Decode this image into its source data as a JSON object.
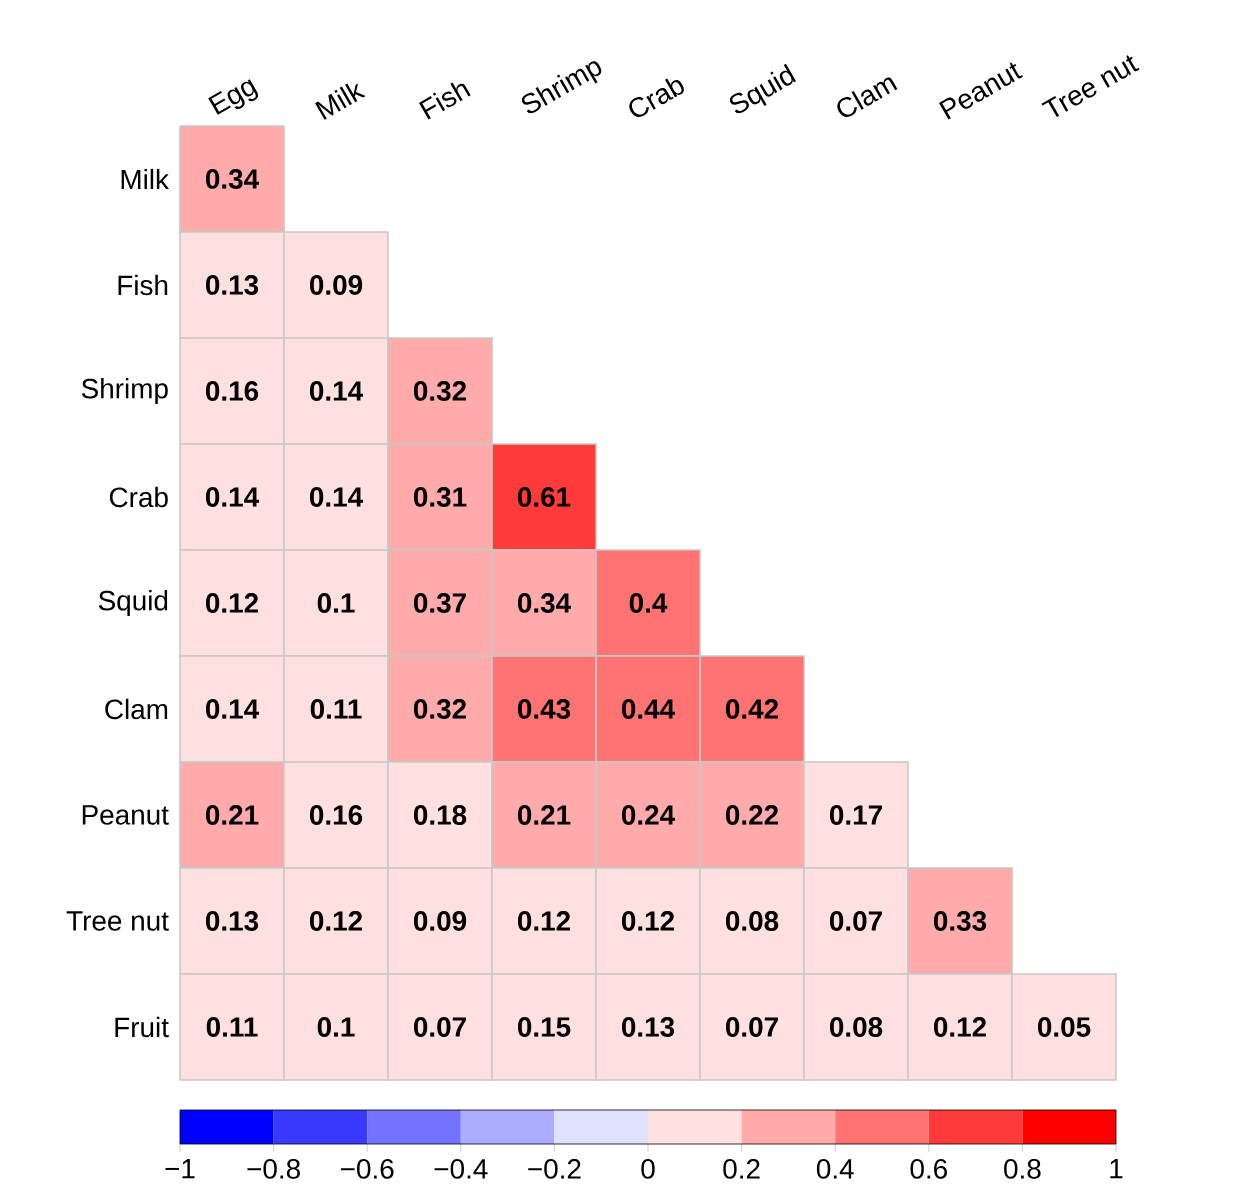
{
  "chart_data": {
    "type": "heatmap",
    "categories": [
      "Egg",
      "Milk",
      "Fish",
      "Shrimp",
      "Crab",
      "Squid",
      "Clam",
      "Peanut",
      "Tree nut"
    ],
    "y_categories": [
      "Milk",
      "Fish",
      "Shrimp",
      "Crab",
      "Squid",
      "Clam",
      "Peanut",
      "Tree nut",
      "Fruit"
    ],
    "cells": [
      [
        0.34,
        null,
        null,
        null,
        null,
        null,
        null,
        null,
        null
      ],
      [
        0.13,
        0.09,
        null,
        null,
        null,
        null,
        null,
        null,
        null
      ],
      [
        0.16,
        0.14,
        0.32,
        null,
        null,
        null,
        null,
        null,
        null
      ],
      [
        0.14,
        0.14,
        0.31,
        0.61,
        null,
        null,
        null,
        null,
        null
      ],
      [
        0.12,
        0.1,
        0.37,
        0.34,
        0.4,
        null,
        null,
        null,
        null
      ],
      [
        0.14,
        0.11,
        0.32,
        0.43,
        0.44,
        0.42,
        null,
        null,
        null
      ],
      [
        0.21,
        0.16,
        0.18,
        0.21,
        0.24,
        0.22,
        0.17,
        null,
        null
      ],
      [
        0.13,
        0.12,
        0.09,
        0.12,
        0.12,
        0.08,
        0.07,
        0.33,
        null
      ],
      [
        0.11,
        0.1,
        0.07,
        0.15,
        0.13,
        0.07,
        0.08,
        0.12,
        0.05
      ]
    ],
    "cell_labels": [
      [
        "0.34",
        null,
        null,
        null,
        null,
        null,
        null,
        null,
        null
      ],
      [
        "0.13",
        "0.09",
        null,
        null,
        null,
        null,
        null,
        null,
        null
      ],
      [
        "0.16",
        "0.14",
        "0.32",
        null,
        null,
        null,
        null,
        null,
        null
      ],
      [
        "0.14",
        "0.14",
        "0.31",
        "0.61",
        null,
        null,
        null,
        null,
        null
      ],
      [
        "0.12",
        "0.1",
        "0.37",
        "0.34",
        "0.4",
        null,
        null,
        null,
        null
      ],
      [
        "0.14",
        "0.11",
        "0.32",
        "0.43",
        "0.44",
        "0.42",
        null,
        null,
        null
      ],
      [
        "0.21",
        "0.16",
        "0.18",
        "0.21",
        "0.24",
        "0.22",
        "0.17",
        null,
        null
      ],
      [
        "0.13",
        "0.12",
        "0.09",
        "0.12",
        "0.12",
        "0.08",
        "0.07",
        "0.33",
        null
      ],
      [
        "0.11",
        "0.1",
        "0.07",
        "0.15",
        "0.13",
        "0.07",
        "0.08",
        "0.12",
        "0.05"
      ]
    ],
    "clim": [
      -1,
      1
    ],
    "cticks": [
      {
        "value": -1,
        "label": "−1"
      },
      {
        "value": -0.8,
        "label": "−0.8"
      },
      {
        "value": -0.6,
        "label": "−0.6"
      },
      {
        "value": -0.4,
        "label": "−0.4"
      },
      {
        "value": -0.2,
        "label": "−0.2"
      },
      {
        "value": 0,
        "label": "0"
      },
      {
        "value": 0.2,
        "label": "0.2"
      },
      {
        "value": 0.4,
        "label": "0.4"
      },
      {
        "value": 0.6,
        "label": "0.6"
      },
      {
        "value": 0.8,
        "label": "0.8"
      },
      {
        "value": 1,
        "label": "1"
      }
    ],
    "data_labels": true
  }
}
